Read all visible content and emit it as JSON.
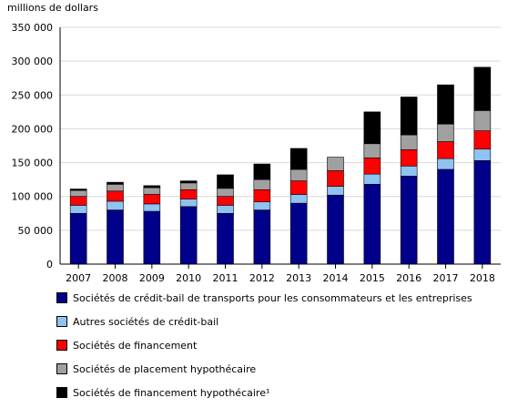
{
  "chart_data": {
    "type": "bar",
    "stacked": true,
    "ylabel": "millions de dollars",
    "ylim": [
      0,
      350000
    ],
    "yticks": [
      "0",
      "50 000",
      "100 000",
      "150 000",
      "200 000",
      "250 000",
      "300 000",
      "350 000"
    ],
    "ytick_values": [
      0,
      50000,
      100000,
      150000,
      200000,
      250000,
      300000,
      350000
    ],
    "categories": [
      "2007",
      "2008",
      "2009",
      "2010",
      "2011",
      "2012",
      "2013",
      "2014",
      "2015",
      "2016",
      "2017",
      "2018"
    ],
    "series": [
      {
        "name": "Sociétés de crédit-bail de transports pour les consommateurs et les entreprises",
        "color": "#00008b",
        "values": [
          75000,
          80000,
          78000,
          85000,
          75000,
          80000,
          90000,
          102000,
          118000,
          130000,
          140000,
          153000
        ]
      },
      {
        "name": "Autres sociétés de crédit-bail",
        "color": "#8fc3f0",
        "values": [
          12000,
          13000,
          11000,
          11000,
          12000,
          12000,
          13000,
          13000,
          15000,
          15000,
          16000,
          17000
        ]
      },
      {
        "name": "Sociétés de financement",
        "color": "#ff0000",
        "values": [
          13000,
          15000,
          14000,
          14000,
          13000,
          18000,
          20000,
          23000,
          24000,
          24000,
          25000,
          27000
        ]
      },
      {
        "name": "Sociétés de placement hypothécaire",
        "color": "#a0a0a0",
        "values": [
          9000,
          10000,
          10000,
          10000,
          12000,
          15000,
          17000,
          20000,
          21000,
          22000,
          26000,
          30000
        ]
      },
      {
        "name": "Sociétés de financement hypothécaire¹",
        "color": "#000000",
        "values": [
          2000,
          3000,
          3000,
          3000,
          20000,
          23000,
          31000,
          0,
          47000,
          56000,
          58000,
          64000
        ]
      }
    ],
    "grid": true,
    "legend_position": "bottom"
  }
}
